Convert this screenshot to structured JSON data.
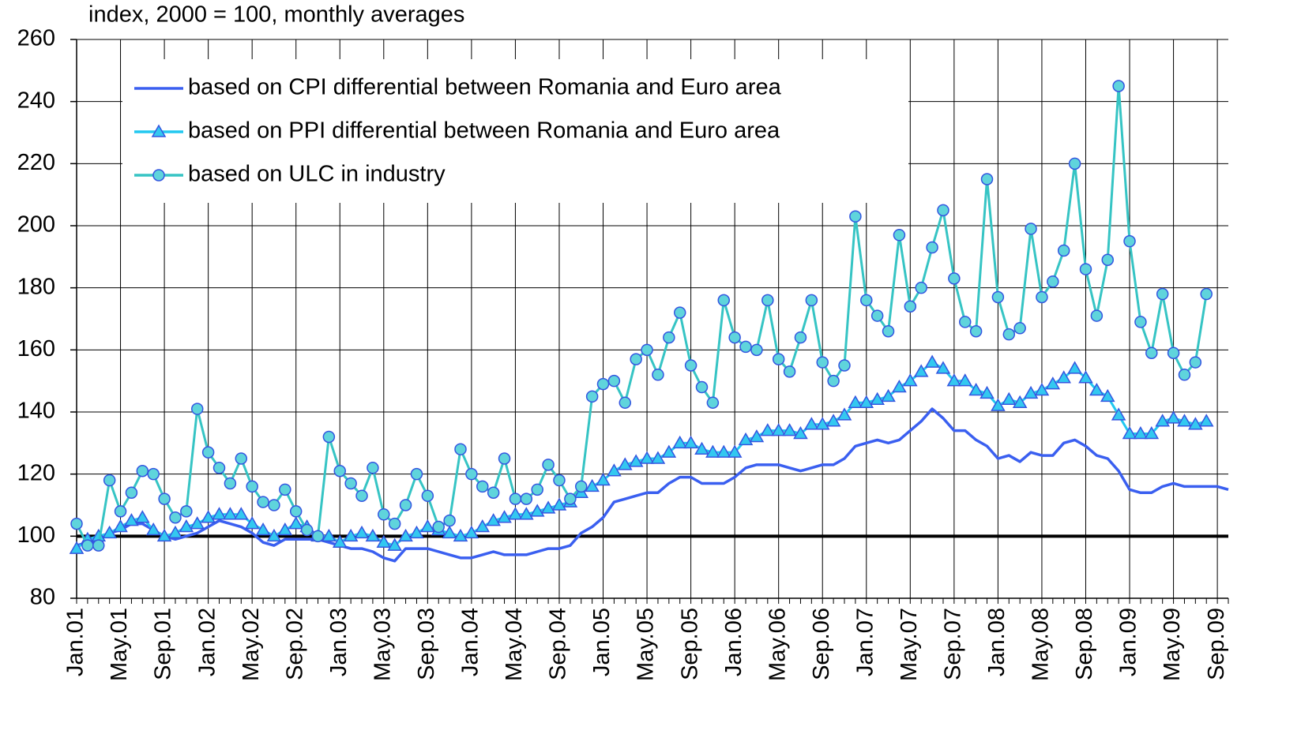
{
  "chart_data": {
    "type": "line",
    "subtitle": "index, 2000 = 100, monthly averages",
    "categories": [
      "Jan.01",
      null,
      null,
      null,
      "May.01",
      null,
      null,
      null,
      "Sep.01",
      null,
      null,
      null,
      "Jan.02",
      null,
      null,
      null,
      "May.02",
      null,
      null,
      null,
      "Sep.02",
      null,
      null,
      null,
      "Jan.03",
      null,
      null,
      null,
      "May.03",
      null,
      null,
      null,
      "Sep.03",
      null,
      null,
      null,
      "Jan.04",
      null,
      null,
      null,
      "May.04",
      null,
      null,
      null,
      "Sep.04",
      null,
      null,
      null,
      "Jan.05",
      null,
      null,
      null,
      "May.05",
      null,
      null,
      null,
      "Sep.05",
      null,
      null,
      null,
      "Jan.06",
      null,
      null,
      null,
      "May.06",
      null,
      null,
      null,
      "Sep.06",
      null,
      null,
      null,
      "Jan.07",
      null,
      null,
      null,
      "May.07",
      null,
      null,
      null,
      "Sep.07",
      null,
      null,
      null,
      "Jan.08",
      null,
      null,
      null,
      "May.08",
      null,
      null,
      null,
      "Sep.08",
      null,
      null,
      null,
      "Jan.09",
      null,
      null,
      null,
      "May.09",
      null,
      null,
      null,
      "Sep.09",
      null
    ],
    "series": [
      {
        "name": "based on CPI differential between Romania and Euro area",
        "color": "#3a5ff0",
        "marker": null,
        "values": [
          97,
          98,
          99,
          101,
          102,
          104,
          104,
          102,
          100,
          99,
          100,
          101,
          103,
          105,
          104,
          103,
          101,
          98,
          97,
          99,
          99,
          99,
          99,
          98,
          97,
          96,
          96,
          95,
          93,
          92,
          96,
          96,
          96,
          95,
          94,
          93,
          93,
          94,
          95,
          94,
          94,
          94,
          95,
          96,
          96,
          97,
          101,
          103,
          106,
          111,
          112,
          113,
          114,
          114,
          117,
          119,
          119,
          117,
          117,
          117,
          119,
          122,
          123,
          123,
          123,
          122,
          121,
          122,
          123,
          123,
          125,
          129,
          130,
          131,
          130,
          131,
          134,
          137,
          141,
          138,
          134,
          134,
          131,
          129,
          125,
          126,
          124,
          127,
          126,
          126,
          130,
          131,
          129,
          126,
          125,
          121,
          115,
          114,
          114,
          116,
          117,
          116,
          116,
          116,
          116,
          115
        ]
      },
      {
        "name": "based on PPI differential between Romania and Euro area",
        "color": "#22c8f0",
        "marker": "triangle",
        "values": [
          96,
          99,
          100,
          101,
          103,
          105,
          106,
          102,
          100,
          101,
          103,
          104,
          106,
          107,
          107,
          107,
          104,
          102,
          100,
          102,
          104,
          103,
          100,
          100,
          98,
          100,
          101,
          100,
          98,
          97,
          100,
          101,
          103,
          102,
          101,
          100,
          101,
          103,
          105,
          106,
          107,
          107,
          108,
          109,
          110,
          111,
          114,
          116,
          118,
          121,
          123,
          124,
          125,
          125,
          127,
          130,
          130,
          128,
          127,
          127,
          127,
          131,
          132,
          134,
          134,
          134,
          133,
          136,
          136,
          137,
          139,
          143,
          143,
          144,
          145,
          148,
          150,
          153,
          156,
          154,
          150,
          150,
          147,
          146,
          142,
          144,
          143,
          146,
          147,
          149,
          151,
          154,
          151,
          147,
          145,
          139,
          133,
          133,
          133,
          137,
          138,
          137,
          136,
          137,
          null,
          null
        ]
      },
      {
        "name": "based on ULC in industry",
        "color": "#36c4c4",
        "marker": "circle",
        "values": [
          104,
          97,
          97,
          118,
          108,
          114,
          121,
          120,
          112,
          106,
          108,
          141,
          127,
          122,
          117,
          125,
          116,
          111,
          110,
          115,
          108,
          102,
          100,
          132,
          121,
          117,
          113,
          122,
          107,
          104,
          110,
          120,
          113,
          103,
          105,
          128,
          120,
          116,
          114,
          125,
          112,
          112,
          115,
          123,
          118,
          112,
          116,
          145,
          149,
          150,
          143,
          157,
          160,
          152,
          164,
          172,
          155,
          148,
          143,
          176,
          164,
          161,
          160,
          176,
          157,
          153,
          164,
          176,
          156,
          150,
          155,
          203,
          176,
          171,
          166,
          197,
          174,
          180,
          193,
          205,
          183,
          169,
          166,
          215,
          177,
          165,
          167,
          199,
          177,
          182,
          192,
          220,
          186,
          171,
          189,
          245,
          195,
          169,
          159,
          178,
          159,
          152,
          156,
          178,
          null,
          null
        ]
      }
    ],
    "ylim": [
      80,
      260
    ],
    "yticks": [
      80,
      100,
      120,
      140,
      160,
      180,
      200,
      220,
      240,
      260
    ],
    "reference_line": 100,
    "grid": true,
    "legend": "upper left"
  }
}
